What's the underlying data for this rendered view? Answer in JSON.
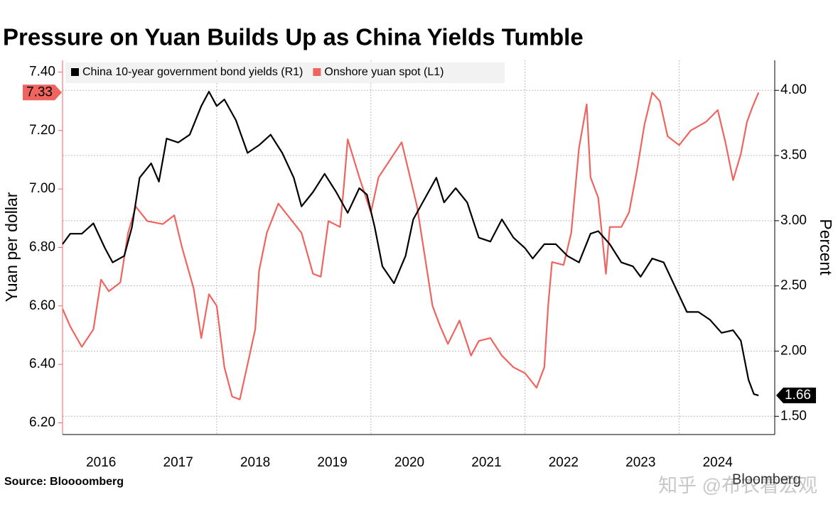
{
  "chart_data": {
    "type": "line",
    "title": "Pressure on Yuan Builds Up as China Yields Tumble",
    "ylabel": "Yuan per dollar",
    "y2label": "Percent",
    "source": "Source: Bloooomberg",
    "watermark": "知乎 @布衣看宏观",
    "logo": "Bloomberg",
    "legend": "top-left",
    "grid": true,
    "xlim": [
      2016,
      2025.24
    ],
    "xticks": [
      {
        "value": 2016.5,
        "label": "2016"
      },
      {
        "value": 2017.5,
        "label": "2017"
      },
      {
        "value": 2018.5,
        "label": "2018"
      },
      {
        "value": 2019.5,
        "label": "2019"
      },
      {
        "value": 2020.5,
        "label": "2020"
      },
      {
        "value": 2021.5,
        "label": "2021"
      },
      {
        "value": 2022.5,
        "label": "2022"
      },
      {
        "value": 2023.5,
        "label": "2023"
      },
      {
        "value": 2024.5,
        "label": "2024"
      }
    ],
    "xgrid": [
      2018,
      2020,
      2022,
      2024
    ],
    "ylim": [
      6.16,
      7.44
    ],
    "yticks": [
      {
        "value": 6.2,
        "label": "6.20"
      },
      {
        "value": 6.4,
        "label": "6.40"
      },
      {
        "value": 6.6,
        "label": "6.60"
      },
      {
        "value": 6.8,
        "label": "6.80"
      },
      {
        "value": 7.0,
        "label": "7.00"
      },
      {
        "value": 7.2,
        "label": "7.20"
      },
      {
        "value": 7.4,
        "label": "7.40"
      }
    ],
    "y2lim": [
      1.36,
      4.23
    ],
    "y2ticks": [
      {
        "value": 1.5,
        "label": "1.50"
      },
      {
        "value": 2.0,
        "label": "2.00"
      },
      {
        "value": 2.5,
        "label": "2.50"
      },
      {
        "value": 3.0,
        "label": "3.00"
      },
      {
        "value": 3.5,
        "label": "3.50"
      },
      {
        "value": 4.0,
        "label": "4.00"
      }
    ],
    "series": [
      {
        "name": "China 10-year government bond yields (R1)",
        "color": "#000000",
        "axis": "y2",
        "x": [
          2016.0,
          2016.1,
          2016.25,
          2016.4,
          2016.55,
          2016.65,
          2016.8,
          2016.9,
          2017.0,
          2017.15,
          2017.25,
          2017.35,
          2017.5,
          2017.65,
          2017.8,
          2017.9,
          2018.0,
          2018.1,
          2018.25,
          2018.4,
          2018.55,
          2018.7,
          2018.85,
          2019.0,
          2019.1,
          2019.25,
          2019.4,
          2019.55,
          2019.7,
          2019.85,
          2019.95,
          2020.05,
          2020.15,
          2020.3,
          2020.45,
          2020.55,
          2020.7,
          2020.85,
          2020.95,
          2021.1,
          2021.25,
          2021.4,
          2021.55,
          2021.7,
          2021.85,
          2022.0,
          2022.1,
          2022.25,
          2022.4,
          2022.55,
          2022.7,
          2022.85,
          2022.95,
          2023.1,
          2023.25,
          2023.4,
          2023.5,
          2023.65,
          2023.8,
          2023.95,
          2024.1,
          2024.25,
          2024.4,
          2024.55,
          2024.7,
          2024.8,
          2024.9,
          2024.97,
          2025.03
        ],
        "values": [
          2.82,
          2.9,
          2.9,
          2.98,
          2.79,
          2.68,
          2.73,
          2.95,
          3.33,
          3.44,
          3.3,
          3.63,
          3.6,
          3.66,
          3.88,
          3.99,
          3.88,
          3.93,
          3.77,
          3.52,
          3.58,
          3.66,
          3.52,
          3.33,
          3.11,
          3.22,
          3.36,
          3.22,
          3.06,
          3.25,
          3.2,
          2.95,
          2.65,
          2.52,
          2.73,
          3.01,
          3.17,
          3.33,
          3.14,
          3.25,
          3.14,
          2.87,
          2.84,
          3.01,
          2.87,
          2.79,
          2.71,
          2.82,
          2.82,
          2.73,
          2.68,
          2.9,
          2.92,
          2.82,
          2.68,
          2.65,
          2.57,
          2.71,
          2.68,
          2.49,
          2.3,
          2.3,
          2.24,
          2.14,
          2.16,
          2.08,
          1.78,
          1.67,
          1.66
        ]
      },
      {
        "name": "Onshore yuan spot (L1)",
        "color": "#f0645f",
        "x": [
          2016.0,
          2016.1,
          2016.25,
          2016.4,
          2016.5,
          2016.6,
          2016.75,
          2016.85,
          2016.95,
          2017.1,
          2017.3,
          2017.45,
          2017.55,
          2017.7,
          2017.8,
          2017.9,
          2018.0,
          2018.1,
          2018.2,
          2018.3,
          2018.4,
          2018.5,
          2018.55,
          2018.65,
          2018.8,
          2018.95,
          2019.1,
          2019.25,
          2019.35,
          2019.45,
          2019.6,
          2019.65,
          2019.7,
          2019.85,
          2020.0,
          2020.1,
          2020.25,
          2020.4,
          2020.5,
          2020.6,
          2020.7,
          2020.8,
          2020.9,
          2021.0,
          2021.15,
          2021.3,
          2021.4,
          2021.55,
          2021.7,
          2021.85,
          2022.0,
          2022.15,
          2022.25,
          2022.3,
          2022.35,
          2022.5,
          2022.6,
          2022.7,
          2022.8,
          2022.85,
          2022.95,
          2023.05,
          2023.1,
          2023.25,
          2023.35,
          2023.45,
          2023.55,
          2023.65,
          2023.75,
          2023.85,
          2024.0,
          2024.15,
          2024.35,
          2024.5,
          2024.6,
          2024.7,
          2024.8,
          2024.88,
          2024.95,
          2025.03
        ],
        "values": [
          6.59,
          6.53,
          6.46,
          6.52,
          6.69,
          6.65,
          6.68,
          6.85,
          6.94,
          6.89,
          6.88,
          6.91,
          6.8,
          6.66,
          6.49,
          6.64,
          6.6,
          6.39,
          6.29,
          6.28,
          6.4,
          6.52,
          6.72,
          6.85,
          6.95,
          6.9,
          6.85,
          6.71,
          6.7,
          6.89,
          6.87,
          7.01,
          7.17,
          7.04,
          6.92,
          7.04,
          7.1,
          7.16,
          7.05,
          6.94,
          6.77,
          6.6,
          6.53,
          6.47,
          6.55,
          6.43,
          6.48,
          6.49,
          6.43,
          6.39,
          6.37,
          6.32,
          6.39,
          6.6,
          6.75,
          6.74,
          6.85,
          7.14,
          7.29,
          7.04,
          6.97,
          6.71,
          6.87,
          6.87,
          6.92,
          7.06,
          7.22,
          7.33,
          7.3,
          7.18,
          7.15,
          7.2,
          7.23,
          7.27,
          7.16,
          7.03,
          7.12,
          7.23,
          7.28,
          7.33
        ]
      }
    ]
  }
}
